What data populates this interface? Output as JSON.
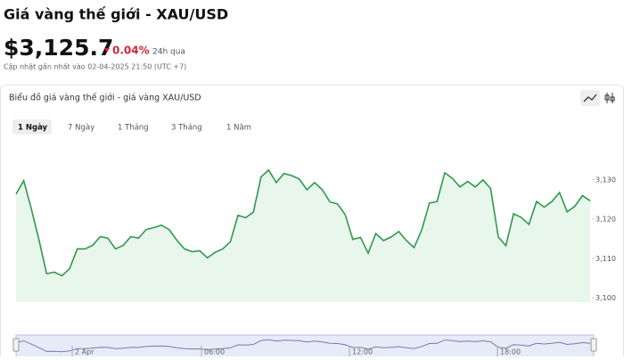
{
  "header": {
    "title": "Giá vàng thế giới - XAU/USD",
    "price": "$3,125.7",
    "change": "0.04%",
    "period": "24h qua",
    "updated": "Cập nhật gần nhất vào 02-04-2025 21:50 (UTC +7)"
  },
  "chart_data": {
    "type": "line",
    "title": "Biểu đồ giá vàng thế giới - giá vàng XAU/USD",
    "tabs": [
      "1 Ngày",
      "7 Ngày",
      "1 Tháng",
      "3 Tháng",
      "1 Năm"
    ],
    "selected_tab": 0,
    "color": "#2f9a4c",
    "fill": "#e9f6ec",
    "values": [
      3126.4,
      3129.8,
      3122.6,
      3114.7,
      3106.2,
      3106.6,
      3105.7,
      3107.5,
      3112.5,
      3112.5,
      3113.4,
      3115.6,
      3115.2,
      3112.5,
      3113.4,
      3115.6,
      3115.2,
      3117.4,
      3117.9,
      3118.5,
      3117.4,
      3114.7,
      3112.5,
      3111.8,
      3112.0,
      3110.2,
      3111.6,
      3112.5,
      3114.3,
      3121.0,
      3120.4,
      3121.8,
      3130.7,
      3132.5,
      3129.3,
      3131.6,
      3131.1,
      3130.2,
      3127.5,
      3129.3,
      3127.5,
      3124.4,
      3123.9,
      3121.2,
      3114.9,
      3115.4,
      3111.4,
      3116.4,
      3114.6,
      3115.5,
      3116.9,
      3114.6,
      3112.8,
      3117.3,
      3124.1,
      3124.5,
      3131.8,
      3130.4,
      3128.2,
      3129.6,
      3128.2,
      3130.0,
      3127.8,
      3115.5,
      3113.3,
      3121.4,
      3120.5,
      3118.7,
      3124.5,
      3123.1,
      3124.5,
      3126.8,
      3121.9,
      3123.3,
      3126.0,
      3124.7
    ],
    "ylim": [
      3099,
      3139
    ],
    "yticks": [
      {
        "value": 3100,
        "label": "3,100"
      },
      {
        "value": 3110,
        "label": "3,110"
      },
      {
        "value": 3120,
        "label": "3,120"
      },
      {
        "value": 3130,
        "label": "3,130"
      }
    ],
    "navigator_labels": [
      "2 Apr",
      "06:00",
      "12:00",
      "18:00"
    ]
  }
}
